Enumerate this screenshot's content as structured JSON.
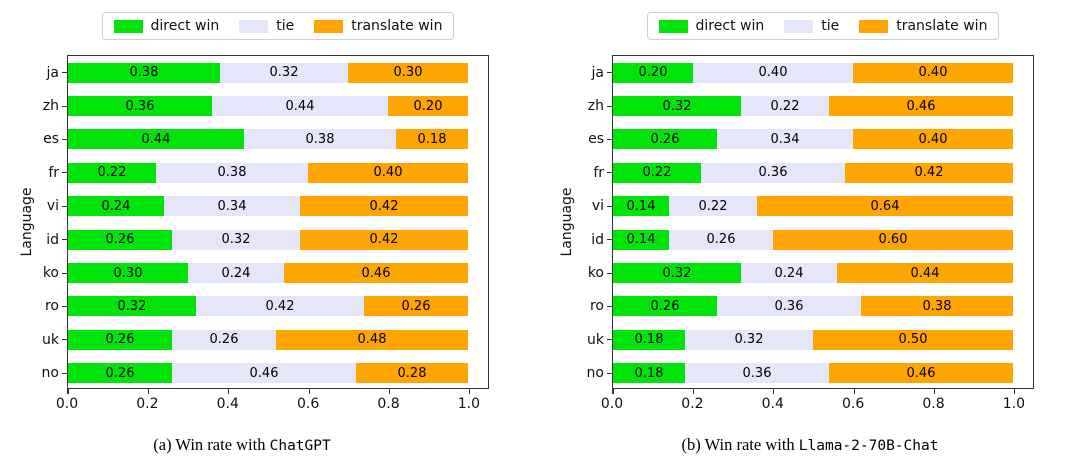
{
  "figure": {
    "description": "Win rates of direct answering vs translate-then-answer across languages",
    "background": "#ffffff"
  },
  "colors": {
    "direct_win": "#00e40a",
    "tie": "#e6e6fa",
    "translate_win": "#ffa500",
    "axis": "#333333",
    "legend_border": "#cfcfcf"
  },
  "chart_data": [
    {
      "type": "bar",
      "orientation": "horizontal",
      "stacked": true,
      "grid": false,
      "legend_position": "top center",
      "caption": {
        "prefix": "(a) Win rate with ",
        "model": "ChatGPT"
      },
      "ylabel": "Language",
      "categories": [
        "ja",
        "zh",
        "es",
        "fr",
        "vi",
        "id",
        "ko",
        "ro",
        "uk",
        "no"
      ],
      "xlim": [
        0,
        1.05
      ],
      "xticks": [
        0,
        0.2,
        0.4,
        0.6,
        0.8,
        1.0
      ],
      "xtick_labels": [
        "0.0",
        "0.2",
        "0.4",
        "0.6",
        "0.8",
        "1.0"
      ],
      "series": [
        {
          "name": "direct win",
          "color": "#00e40a",
          "values": [
            0.38,
            0.36,
            0.44,
            0.22,
            0.24,
            0.26,
            0.3,
            0.32,
            0.26,
            0.26
          ]
        },
        {
          "name": "tie",
          "color": "#e6e6fa",
          "values": [
            0.32,
            0.44,
            0.38,
            0.38,
            0.34,
            0.32,
            0.24,
            0.42,
            0.26,
            0.46
          ]
        },
        {
          "name": "translate win",
          "color": "#ffa500",
          "values": [
            0.3,
            0.2,
            0.18,
            0.4,
            0.42,
            0.42,
            0.46,
            0.26,
            0.48,
            0.28
          ]
        }
      ]
    },
    {
      "type": "bar",
      "orientation": "horizontal",
      "stacked": true,
      "grid": false,
      "legend_position": "top center",
      "caption": {
        "prefix": "(b) Win rate with ",
        "model": "Llama-2-70B-Chat"
      },
      "ylabel": "Language",
      "categories": [
        "ja",
        "zh",
        "es",
        "fr",
        "vi",
        "id",
        "ko",
        "ro",
        "uk",
        "no"
      ],
      "xlim": [
        0,
        1.05
      ],
      "xticks": [
        0,
        0.2,
        0.4,
        0.6,
        0.8,
        1.0
      ],
      "xtick_labels": [
        "0.0",
        "0.2",
        "0.4",
        "0.6",
        "0.8",
        "1.0"
      ],
      "series": [
        {
          "name": "direct win",
          "color": "#00e40a",
          "values": [
            0.2,
            0.32,
            0.26,
            0.22,
            0.14,
            0.14,
            0.32,
            0.26,
            0.18,
            0.18
          ]
        },
        {
          "name": "tie",
          "color": "#e6e6fa",
          "values": [
            0.4,
            0.22,
            0.34,
            0.36,
            0.22,
            0.26,
            0.24,
            0.36,
            0.32,
            0.36
          ]
        },
        {
          "name": "translate win",
          "color": "#ffa500",
          "values": [
            0.4,
            0.46,
            0.4,
            0.42,
            0.64,
            0.6,
            0.44,
            0.38,
            0.5,
            0.46
          ]
        }
      ]
    }
  ]
}
